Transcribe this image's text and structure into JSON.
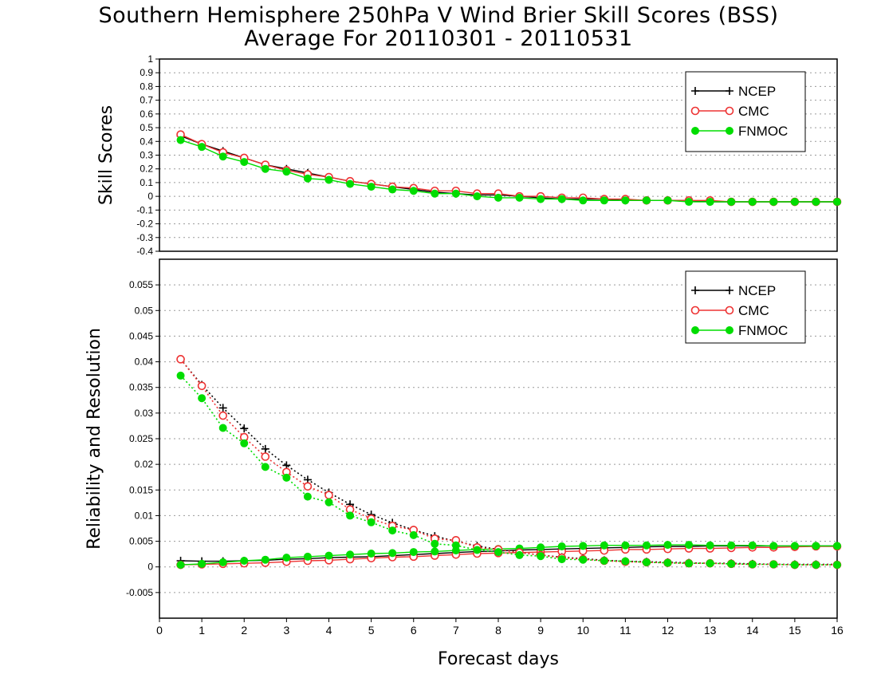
{
  "title_line1": "Southern Hemisphere 250hPa V Wind Brier Skill Scores (BSS)",
  "title_line2": "Average For 20110301 - 20110531",
  "chart_data": [
    {
      "type": "line",
      "panel": "top",
      "ylabel": "Skill Scores",
      "xlabel": "",
      "ylim": [
        -0.4,
        1
      ],
      "yticks": [
        -0.4,
        -0.3,
        -0.2,
        -0.1,
        0,
        0.1,
        0.2,
        0.3,
        0.4,
        0.5,
        0.6,
        0.7,
        0.8,
        0.9,
        1
      ],
      "ytick_labels": [
        "-0.4",
        "-0.3",
        "-0.2",
        "-0.1",
        "0",
        "0.1",
        "0.2",
        "0.3",
        "0.4",
        "0.5",
        "0.6",
        "0.7",
        "0.8",
        "0.9",
        "1"
      ],
      "xlim": [
        0,
        16
      ],
      "grid": true,
      "legend_position": "top-right",
      "x": [
        0.5,
        1,
        1.5,
        2,
        2.5,
        3,
        3.5,
        4,
        4.5,
        5,
        5.5,
        6,
        6.5,
        7,
        7.5,
        8,
        8.5,
        9,
        9.5,
        10,
        10.5,
        11,
        11.5,
        12,
        12.5,
        13,
        13.5,
        14,
        14.5,
        15,
        15.5,
        16
      ],
      "series": [
        {
          "name": "NCEP",
          "color": "#000000",
          "marker": "plus",
          "style": "solid",
          "values": [
            0.44,
            0.38,
            0.33,
            0.28,
            0.23,
            0.2,
            0.17,
            0.14,
            0.11,
            0.09,
            0.07,
            0.05,
            0.03,
            0.02,
            0.01,
            0.01,
            0.0,
            -0.01,
            -0.02,
            -0.02,
            -0.02,
            -0.03,
            -0.03,
            -0.03,
            -0.03,
            -0.04,
            -0.04,
            -0.04,
            -0.04,
            -0.04,
            -0.04,
            -0.04
          ]
        },
        {
          "name": "CMC",
          "color": "#ee3333",
          "marker": "circle-open",
          "style": "solid",
          "values": [
            0.45,
            0.38,
            0.32,
            0.28,
            0.23,
            0.19,
            0.16,
            0.14,
            0.11,
            0.09,
            0.07,
            0.06,
            0.04,
            0.04,
            0.02,
            0.02,
            0.0,
            0.0,
            -0.01,
            -0.01,
            -0.02,
            -0.02,
            -0.03,
            -0.03,
            -0.03,
            -0.03,
            -0.04,
            -0.04,
            -0.04,
            -0.04,
            -0.04,
            -0.04
          ]
        },
        {
          "name": "FNMOC",
          "color": "#00dd00",
          "marker": "circle-filled",
          "style": "solid",
          "values": [
            0.41,
            0.36,
            0.29,
            0.25,
            0.2,
            0.18,
            0.13,
            0.12,
            0.09,
            0.07,
            0.05,
            0.04,
            0.02,
            0.02,
            0.0,
            -0.01,
            -0.01,
            -0.02,
            -0.02,
            -0.03,
            -0.03,
            -0.03,
            -0.03,
            -0.03,
            -0.04,
            -0.04,
            -0.04,
            -0.04,
            -0.04,
            -0.04,
            -0.04,
            -0.04
          ]
        }
      ]
    },
    {
      "type": "line",
      "panel": "bottom",
      "ylabel": "Reliability and Resolution",
      "xlabel": "Forecast days",
      "ylim": [
        -0.01,
        0.06
      ],
      "yticks": [
        -0.005,
        0,
        0.005,
        0.01,
        0.015,
        0.02,
        0.025,
        0.03,
        0.035,
        0.04,
        0.045,
        0.05,
        0.055
      ],
      "ytick_labels": [
        "-0.005",
        "0",
        "0.005",
        "0.01",
        "0.015",
        "0.02",
        "0.025",
        "0.03",
        "0.035",
        "0.04",
        "0.045",
        "0.05",
        "0.055"
      ],
      "xlim": [
        0,
        16
      ],
      "xticks": [
        0,
        1,
        2,
        3,
        4,
        5,
        6,
        7,
        8,
        9,
        10,
        11,
        12,
        13,
        14,
        15,
        16
      ],
      "xtick_labels": [
        "0",
        "1",
        "2",
        "3",
        "4",
        "5",
        "6",
        "7",
        "8",
        "9",
        "10",
        "11",
        "12",
        "13",
        "14",
        "15",
        "16"
      ],
      "grid": true,
      "legend_position": "top-right",
      "x": [
        0.5,
        1,
        1.5,
        2,
        2.5,
        3,
        3.5,
        4,
        4.5,
        5,
        5.5,
        6,
        6.5,
        7,
        7.5,
        8,
        8.5,
        9,
        9.5,
        10,
        10.5,
        11,
        11.5,
        12,
        12.5,
        13,
        13.5,
        14,
        14.5,
        15,
        15.5,
        16
      ],
      "series": [
        {
          "name": "NCEP",
          "color": "#000000",
          "marker": "plus",
          "style": "solid",
          "quantity": "resolution",
          "values": [
            0.0012,
            0.0011,
            0.0011,
            0.0012,
            0.0013,
            0.0015,
            0.0016,
            0.0018,
            0.0019,
            0.002,
            0.0022,
            0.0024,
            0.0026,
            0.0028,
            0.003,
            0.0031,
            0.0033,
            0.0034,
            0.0035,
            0.0036,
            0.0037,
            0.0038,
            0.0039,
            0.004,
            0.004,
            0.0041,
            0.0041,
            0.0041,
            0.0041,
            0.0041,
            0.0041,
            0.0041
          ]
        },
        {
          "name": "CMC",
          "color": "#ee3333",
          "marker": "circle-open",
          "style": "solid",
          "quantity": "resolution",
          "values": [
            0.0004,
            0.0005,
            0.0006,
            0.0007,
            0.0008,
            0.001,
            0.0012,
            0.0013,
            0.0015,
            0.0017,
            0.0019,
            0.002,
            0.0022,
            0.0024,
            0.0026,
            0.0027,
            0.0028,
            0.0029,
            0.003,
            0.0031,
            0.0032,
            0.0034,
            0.0034,
            0.0035,
            0.0036,
            0.0036,
            0.0037,
            0.0038,
            0.0038,
            0.0039,
            0.004,
            0.004
          ]
        },
        {
          "name": "FNMOC",
          "color": "#00dd00",
          "marker": "circle-filled",
          "style": "solid",
          "quantity": "resolution",
          "values": [
            0.0004,
            0.0006,
            0.0009,
            0.0012,
            0.0014,
            0.0018,
            0.002,
            0.0022,
            0.0024,
            0.0026,
            0.0027,
            0.0029,
            0.003,
            0.0032,
            0.0034,
            0.0035,
            0.0036,
            0.0038,
            0.004,
            0.0041,
            0.0042,
            0.0042,
            0.0042,
            0.0043,
            0.0043,
            0.0042,
            0.0042,
            0.0042,
            0.0041,
            0.0041,
            0.0041,
            0.0041
          ]
        },
        {
          "name": "NCEP",
          "color": "#000000",
          "marker": "plus",
          "style": "dotted",
          "quantity": "reliability",
          "values": [
            0.0405,
            0.0355,
            0.031,
            0.027,
            0.023,
            0.0198,
            0.017,
            0.0145,
            0.0122,
            0.0102,
            0.0086,
            0.0072,
            0.006,
            0.005,
            0.0041,
            0.0034,
            0.0028,
            0.0023,
            0.0019,
            0.0016,
            0.0013,
            0.0011,
            0.001,
            0.0009,
            0.0008,
            0.0007,
            0.0007,
            0.0006,
            0.0005,
            0.0005,
            0.0005,
            0.0005
          ]
        },
        {
          "name": "CMC",
          "color": "#ee3333",
          "marker": "circle-open",
          "style": "dotted",
          "quantity": "reliability",
          "values": [
            0.0405,
            0.0353,
            0.0295,
            0.0253,
            0.0215,
            0.0185,
            0.0157,
            0.014,
            0.0112,
            0.0094,
            0.008,
            0.0072,
            0.0055,
            0.0052,
            0.0038,
            0.0034,
            0.0028,
            0.0023,
            0.0018,
            0.0015,
            0.0012,
            0.001,
            0.0009,
            0.0008,
            0.0007,
            0.0007,
            0.0006,
            0.0005,
            0.0005,
            0.0004,
            0.0004,
            0.0004
          ]
        },
        {
          "name": "FNMOC",
          "color": "#00dd00",
          "marker": "circle-filled",
          "style": "dotted",
          "quantity": "reliability",
          "values": [
            0.0373,
            0.0329,
            0.0271,
            0.0241,
            0.0195,
            0.0174,
            0.0137,
            0.0126,
            0.01,
            0.0087,
            0.0071,
            0.0062,
            0.0045,
            0.0042,
            0.0033,
            0.0029,
            0.0023,
            0.0021,
            0.0015,
            0.0014,
            0.0012,
            0.0011,
            0.0009,
            0.0008,
            0.0007,
            0.0007,
            0.0006,
            0.0005,
            0.0005,
            0.0004,
            0.0004,
            0.0004
          ]
        }
      ]
    }
  ]
}
